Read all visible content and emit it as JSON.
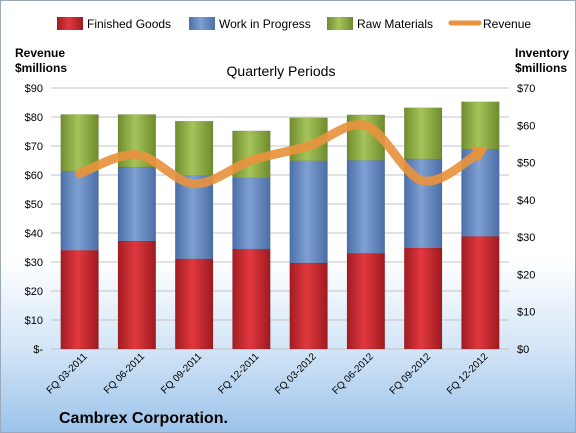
{
  "chart_data": {
    "type": "bar",
    "stacked": true,
    "subtitle": "Quarterly Periods",
    "company": "Cambrex Corporation.",
    "left_axis": {
      "title_line1": "Revenue",
      "title_line2": "$millions",
      "range": [
        0,
        90
      ],
      "ticks": [
        0,
        10,
        20,
        30,
        40,
        50,
        60,
        70,
        80,
        90
      ],
      "tick_labels": [
        "$-",
        "$10",
        "$20",
        "$30",
        "$40",
        "$50",
        "$60",
        "$70",
        "$80",
        "$90"
      ]
    },
    "right_axis": {
      "title_line1": "Inventory",
      "title_line2": "$millions",
      "range": [
        0,
        70
      ],
      "ticks": [
        0,
        10,
        20,
        30,
        40,
        50,
        60,
        70
      ],
      "tick_labels": [
        "$0",
        "$10",
        "$20",
        "$30",
        "$40",
        "$50",
        "$60",
        "$70"
      ]
    },
    "categories": [
      "FQ 03-2011",
      "FQ 06-2011",
      "FQ 09-2011",
      "FQ 12-2011",
      "FQ 03-2012",
      "FQ 06-2012",
      "FQ 09-2012",
      "FQ 12-2012"
    ],
    "series": [
      {
        "name": "Finished Goods",
        "axis": "right",
        "color": "#c0272d",
        "values": [
          26.5,
          29,
          24.2,
          26.8,
          23.1,
          25.7,
          27.1,
          30.2
        ]
      },
      {
        "name": "Work in Progress",
        "axis": "right",
        "color": "#5f84bd",
        "values": [
          21.2,
          19.8,
          22.3,
          19.1,
          27.4,
          24.9,
          23.9,
          23.4
        ]
      },
      {
        "name": "Raw Materials",
        "axis": "right",
        "color": "#8dac42",
        "values": [
          15.2,
          14.1,
          14.6,
          12.6,
          11.5,
          12.2,
          13.7,
          12.7
        ]
      },
      {
        "name": "Revenue",
        "type": "line",
        "axis": "left",
        "color": "#e8923e",
        "values": [
          60.5,
          67,
          57,
          65,
          70,
          77,
          58,
          68
        ]
      }
    ],
    "legend_position": "top",
    "grid": true
  }
}
